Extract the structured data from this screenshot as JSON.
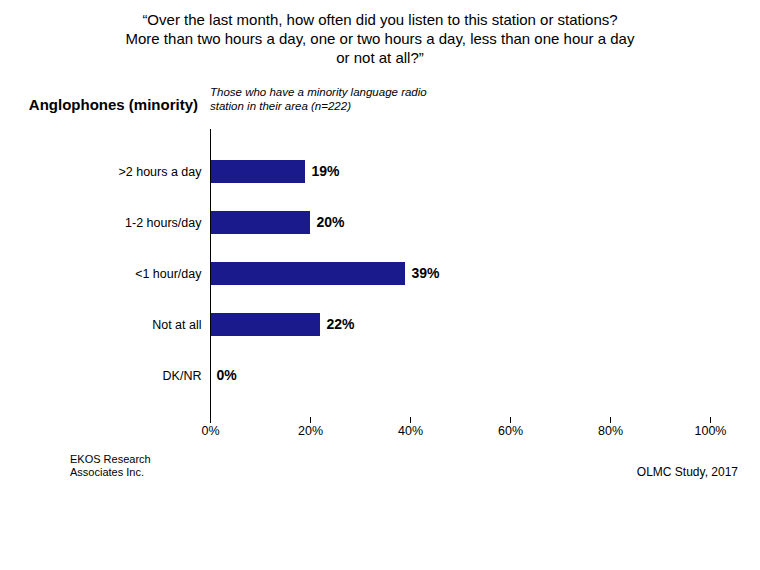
{
  "chart_data": {
    "type": "bar",
    "orientation": "horizontal",
    "title": "“Over the last month, how often did you listen to this station or stations?\nMore than two hours a day, one or two hours a day, less than one hour a day\nor not at all?”",
    "subtitle": "Those who have a minority language radio\nstation in their area (n=222)",
    "annotations": [
      "Anglophones (minority)",
      "EKOS Research\nAssociates Inc.",
      "OLMC Study, 2017"
    ],
    "categories": [
      ">2 hours a day",
      "1-2 hours/day",
      "<1 hour/day",
      "Not at all",
      "DK/NR"
    ],
    "values": [
      19,
      20,
      39,
      22,
      0
    ],
    "value_labels": [
      "19%",
      "20%",
      "39%",
      "22%",
      "0%"
    ],
    "data_labels": true,
    "color": "#1a1a8c",
    "xlim": [
      0,
      100
    ],
    "xticks": [
      {
        "value": 0,
        "label": "0%"
      },
      {
        "value": 20,
        "label": "20%"
      },
      {
        "value": 40,
        "label": "40%"
      },
      {
        "value": 60,
        "label": "60%"
      },
      {
        "value": 80,
        "label": "80%"
      },
      {
        "value": 100,
        "label": "100%"
      }
    ],
    "grid": false
  }
}
